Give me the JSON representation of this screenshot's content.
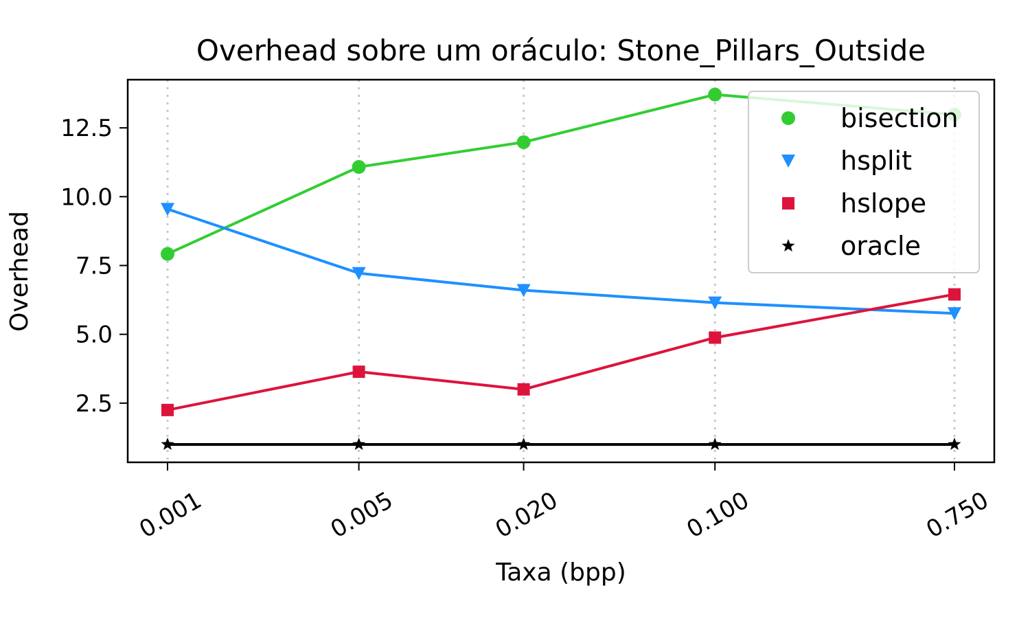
{
  "chart_data": {
    "type": "line",
    "title": "Overhead sobre um oráculo: Stone_Pillars_Outside",
    "xlabel": "Taxa (bpp)",
    "ylabel": "Overhead",
    "x_scale": "log",
    "x": [
      0.001,
      0.005,
      0.02,
      0.1,
      0.75
    ],
    "x_tick_labels": [
      "0.001",
      "0.005",
      "0.020",
      "0.100",
      "0.750"
    ],
    "y_ticks": [
      2.5,
      5.0,
      7.5,
      10.0,
      12.5
    ],
    "y_tick_labels": [
      "2.5",
      "5.0",
      "7.5",
      "10.0",
      "12.5"
    ],
    "ylim": [
      0.35,
      14.25
    ],
    "grid": "vertical dotted",
    "legend_position": "upper-right",
    "series": [
      {
        "name": "bisection",
        "color": "#32cd32",
        "marker": "circle",
        "values": [
          7.92,
          11.08,
          11.98,
          13.71,
          12.98
        ]
      },
      {
        "name": "hsplit",
        "color": "#1e90ff",
        "marker": "triangle-down",
        "values": [
          9.55,
          7.22,
          6.6,
          6.15,
          5.76
        ]
      },
      {
        "name": "hslope",
        "color": "#dc143c",
        "marker": "square",
        "values": [
          2.25,
          3.64,
          3.0,
          4.88,
          6.45
        ]
      },
      {
        "name": "oracle",
        "color": "#000000",
        "marker": "star",
        "values": [
          1.0,
          1.0,
          1.0,
          1.0,
          1.0
        ]
      }
    ]
  }
}
